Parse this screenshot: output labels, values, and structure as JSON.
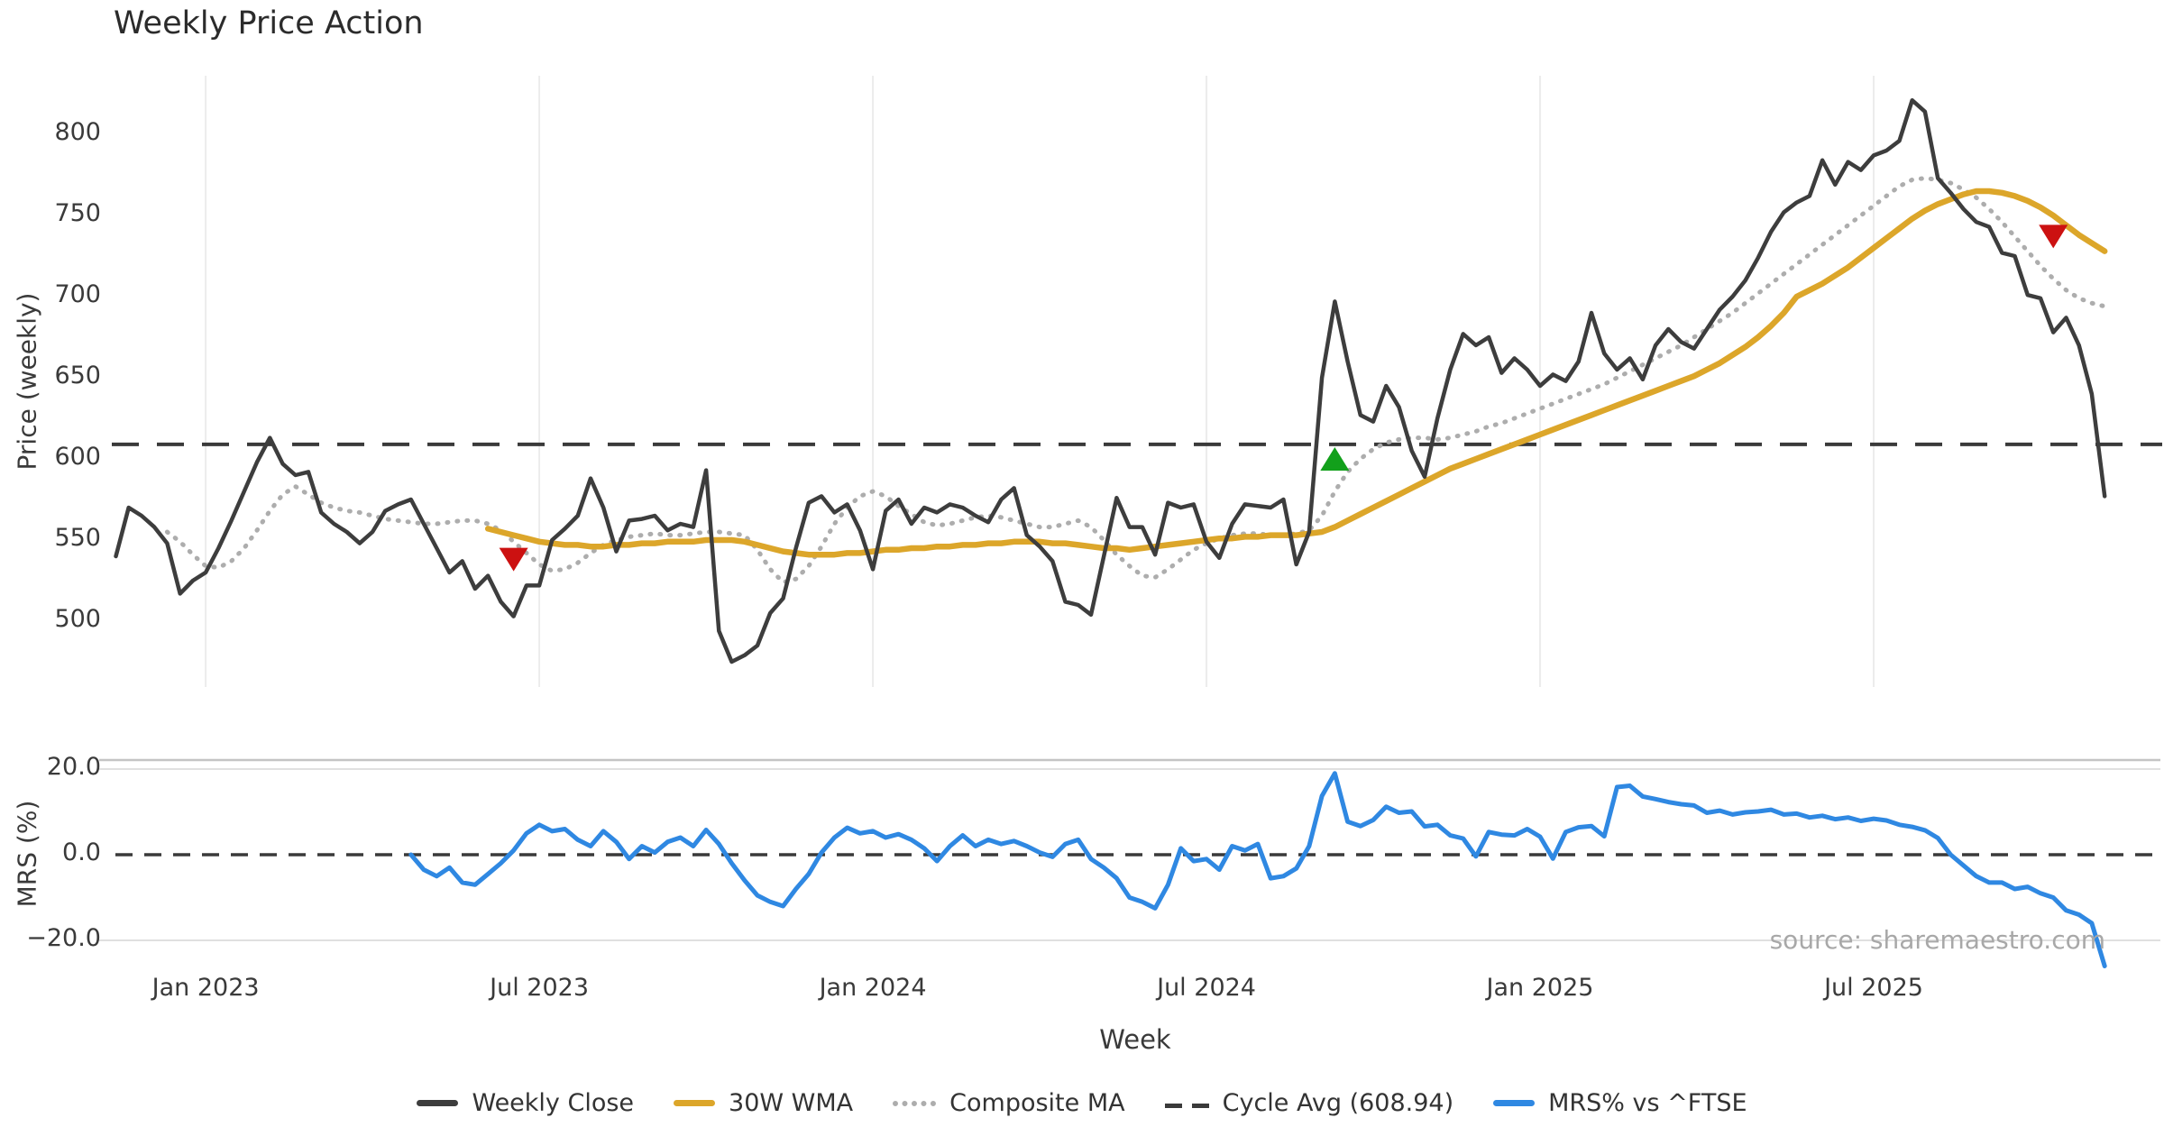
{
  "figure": {
    "title": "Weekly Price Action",
    "xlabel": "Week",
    "source_text": "source: sharemaestro.com"
  },
  "colors": {
    "weekly_close": "#3d3d3d",
    "wma30": "#dca62a",
    "composite_ma": "#adadad",
    "cycle_avg": "#3a3a3a",
    "mrs": "#2f88e2",
    "buy_marker": "#12a01b",
    "sell_marker": "#cc1111",
    "grid_vertical": "#ececec",
    "grid_horizontal": "#e0e0e0",
    "panel_border": "#c4c4c4",
    "source_text": "#a8a8a8"
  },
  "legend": [
    {
      "key": "close",
      "label": "Weekly Close"
    },
    {
      "key": "wma",
      "label": "30W WMA"
    },
    {
      "key": "composite",
      "label": "Composite MA"
    },
    {
      "key": "cycle",
      "label": "Cycle Avg (608.94)"
    },
    {
      "key": "mrs",
      "label": "MRS% vs ^FTSE"
    }
  ],
  "axes": {
    "price": {
      "label": "Price (weekly)",
      "ticks": [
        500,
        550,
        600,
        650,
        700,
        750,
        800
      ],
      "ylim": [
        460,
        836
      ]
    },
    "mrs": {
      "label": "MRS (%)",
      "ticks": [
        {
          "v": 20,
          "label": "20.0"
        },
        {
          "v": 0,
          "label": "0.0"
        },
        {
          "v": -20,
          "label": "−20.0"
        }
      ],
      "ylim": [
        -27,
        22
      ]
    },
    "x": {
      "label": "Week",
      "ticks": [
        {
          "week": 7,
          "label": "Jan 2023"
        },
        {
          "week": 33,
          "label": "Jul 2023"
        },
        {
          "week": 59,
          "label": "Jan 2024"
        },
        {
          "week": 85,
          "label": "Jul 2024"
        },
        {
          "week": 111,
          "label": "Jan 2025"
        },
        {
          "week": 137,
          "label": "Jul 2025"
        }
      ]
    }
  },
  "chart_data": {
    "type": "line",
    "title": "Weekly Price Action",
    "xlabel": "Week",
    "x_unit": "week_index",
    "weeks_total": 156,
    "grid": {
      "vertical_top_panel": true,
      "horizontal_mrs": [
        20,
        -20
      ]
    },
    "legend_position": "bottom-center",
    "panels": [
      {
        "name": "price",
        "ylabel": "Price (weekly)",
        "ylim": [
          460,
          836
        ],
        "cycle_avg": 608.94,
        "series": [
          {
            "name": "Weekly Close",
            "start_week": 0,
            "values": [
              540,
              570,
              565,
              558,
              548,
              517,
              525,
              530,
              545,
              562,
              580,
              598,
              613,
              597,
              590,
              592,
              567,
              560,
              555,
              548,
              555,
              568,
              572,
              575,
              560,
              545,
              530,
              537,
              520,
              528,
              512,
              503,
              522,
              522,
              550,
              557,
              565,
              588,
              570,
              543,
              562,
              563,
              565,
              556,
              560,
              558,
              593,
              494,
              475,
              479,
              485,
              505,
              514,
              545,
              573,
              577,
              567,
              572,
              556,
              532,
              568,
              575,
              560,
              570,
              567,
              572,
              570,
              565,
              561,
              575,
              582,
              553,
              546,
              537,
              512,
              510,
              504,
              540,
              576,
              558,
              558,
              541,
              573,
              570,
              572,
              549,
              539,
              560,
              572,
              571,
              570,
              575,
              535,
              555,
              650,
              697,
              660,
              627,
              623,
              645,
              632,
              605,
              589,
              625,
              655,
              677,
              670,
              675,
              653,
              662,
              655,
              645,
              652,
              648,
              660,
              690,
              665,
              655,
              662,
              649,
              670,
              680,
              672,
              668,
              680,
              692,
              700,
              710,
              724,
              740,
              752,
              758,
              762,
              784,
              769,
              783,
              778,
              787,
              790,
              796,
              821,
              814,
              773,
              764,
              754,
              746,
              743,
              727,
              725,
              701,
              699,
              678,
              687,
              670,
              640,
              577
            ]
          },
          {
            "name": "30W WMA",
            "start_week": 29,
            "values": [
              557,
              555,
              553,
              551,
              549,
              548,
              547,
              547,
              546,
              546,
              547,
              547,
              548,
              548,
              549,
              549,
              549,
              550,
              550,
              550,
              549,
              547,
              545,
              543,
              542,
              541,
              541,
              541,
              542,
              542,
              543,
              544,
              544,
              545,
              545,
              546,
              546,
              547,
              547,
              548,
              548,
              549,
              549,
              549,
              548,
              548,
              547,
              546,
              545,
              545,
              544,
              545,
              546,
              547,
              548,
              549,
              550,
              551,
              551,
              552,
              552,
              553,
              553,
              553,
              554,
              555,
              558,
              562,
              566,
              570,
              574,
              578,
              582,
              586,
              590,
              594,
              597,
              600,
              603,
              606,
              609,
              612,
              615,
              618,
              621,
              624,
              627,
              630,
              633,
              636,
              639,
              642,
              645,
              648,
              651,
              655,
              659,
              664,
              669,
              675,
              682,
              690,
              700,
              704,
              708,
              713,
              718,
              724,
              730,
              736,
              742,
              748,
              753,
              757,
              760,
              763,
              765,
              765,
              764,
              762,
              759,
              755,
              750,
              744,
              738,
              733,
              728
            ]
          },
          {
            "name": "Composite MA",
            "start_week": 4,
            "values": [
              555,
              549,
              541,
              534,
              533,
              537,
              545,
              556,
              568,
              578,
              583,
              578,
              573,
              570,
              568,
              567,
              565,
              563,
              562,
              561,
              560,
              560,
              561,
              562,
              562,
              560,
              556,
              549,
              542,
              535,
              531,
              532,
              536,
              542,
              547,
              550,
              552,
              553,
              554,
              553,
              553,
              554,
              555,
              555,
              554,
              553,
              544,
              532,
              524,
              526,
              534,
              546,
              560,
              570,
              577,
              580,
              577,
              571,
              566,
              561,
              559,
              560,
              562,
              564,
              565,
              564,
              562,
              560,
              558,
              558,
              560,
              562,
              558,
              550,
              541,
              534,
              528,
              527,
              532,
              538,
              544,
              548,
              551,
              553,
              554,
              554,
              553,
              553,
              554,
              556,
              565,
              580,
              592,
              600,
              606,
              610,
              612,
              613,
              613,
              612,
              613,
              615,
              617,
              620,
              622,
              625,
              628,
              631,
              634,
              637,
              640,
              643,
              646,
              650,
              654,
              658,
              662,
              666,
              670,
              675,
              680,
              685,
              690,
              696,
              702,
              708,
              714,
              720,
              726,
              732,
              738,
              744,
              750,
              756,
              762,
              768,
              772,
              773,
              772,
              770,
              766,
              761,
              754,
              746,
              737,
              728,
              719,
              711,
              704,
              699,
              696,
              694
            ]
          }
        ],
        "markers": [
          {
            "type": "sell",
            "week": 31,
            "price": 538
          },
          {
            "type": "buy",
            "week": 95,
            "price": 600
          },
          {
            "type": "sell",
            "week": 151,
            "price": 737
          }
        ]
      },
      {
        "name": "mrs",
        "ylabel": "MRS (%)",
        "ylim": [
          -27,
          22
        ],
        "zero_line": 0,
        "series": [
          {
            "name": "MRS% vs ^FTSE",
            "start_week": 23,
            "values": [
              0,
              -3.5,
              -5,
              -3,
              -6.5,
              -7,
              -4.5,
              -2,
              1,
              5,
              7,
              5.5,
              6,
              3.5,
              2,
              5.5,
              3,
              -1,
              2,
              0.5,
              3,
              4,
              2,
              5.8,
              2.5,
              -2,
              -6,
              -9.5,
              -11,
              -12,
              -8,
              -4.5,
              0.5,
              4,
              6.3,
              5,
              5.5,
              4,
              4.8,
              3.5,
              1.5,
              -1.5,
              2,
              4.5,
              2,
              3.5,
              2.5,
              3.2,
              2,
              0.5,
              -0.5,
              2.5,
              3.5,
              -1,
              -3,
              -5.5,
              -10,
              -11,
              -12.5,
              -7,
              1.5,
              -1.5,
              -1,
              -3.5,
              2,
              1,
              2.5,
              -5.5,
              -5,
              -3.2,
              2,
              13.7,
              19,
              7.7,
              6.7,
              8.1,
              11.2,
              9.8,
              10.1,
              6.6,
              7,
              4.5,
              3.8,
              -0.4,
              5.3,
              4.7,
              4.5,
              6,
              4.2,
              -0.9,
              5.3,
              6.4,
              6.7,
              4.3,
              15.8,
              16.1,
              13.6,
              13,
              12.3,
              11.8,
              11.5,
              9.8,
              10.3,
              9.4,
              9.9,
              10.1,
              10.5,
              9.4,
              9.6,
              8.7,
              9.1,
              8.3,
              8.7,
              7.9,
              8.4,
              8,
              7,
              6.5,
              5.7,
              3.9,
              0,
              -2.5,
              -5,
              -6.5,
              -6.5,
              -8,
              -7.5,
              -9,
              -10,
              -13,
              -14,
              -16,
              -26
            ]
          }
        ]
      }
    ]
  }
}
